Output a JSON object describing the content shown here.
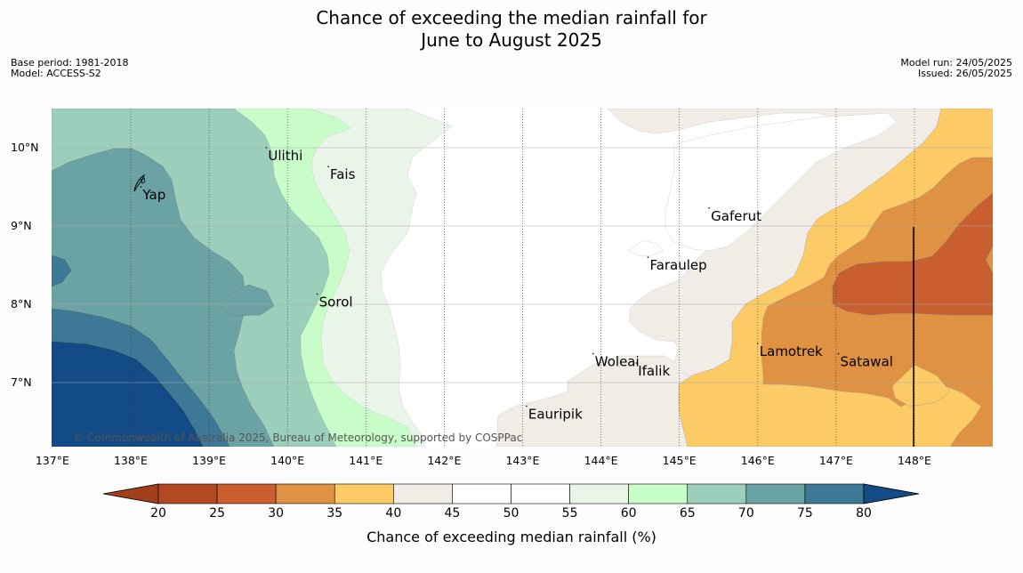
{
  "title_line1": "Chance of exceeding the median rainfall for",
  "title_line2": "June to August 2025",
  "base_period": "Base period: 1981-2018",
  "model": "Model: ACCESS-S2",
  "model_run": "Model run: 24/05/2025",
  "issued": "Issued: 26/05/2025",
  "copyright": "© Commonwealth of Australia 2025, Bureau of Meteorology, supported by COSPPac",
  "lat_labels": [
    "10°N",
    "9°N",
    "8°N",
    "7°N"
  ],
  "lon_labels": [
    "137°E",
    "138°E",
    "139°E",
    "140°E",
    "141°E",
    "142°E",
    "143°E",
    "144°E",
    "145°E",
    "146°E",
    "147°E",
    "148°E"
  ],
  "places": [
    {
      "name": "Ulithi",
      "lon": 139.73,
      "lat": 10.0
    },
    {
      "name": "Fais",
      "lon": 140.52,
      "lat": 9.76
    },
    {
      "name": "Yap",
      "lon": 138.13,
      "lat": 9.5
    },
    {
      "name": "Gaferut",
      "lon": 145.38,
      "lat": 9.23
    },
    {
      "name": "Faraulep",
      "lon": 144.6,
      "lat": 8.6
    },
    {
      "name": "Sorol",
      "lon": 140.38,
      "lat": 8.13
    },
    {
      "name": "Lamotrek",
      "lon": 146.0,
      "lat": 7.5
    },
    {
      "name": "Woleai",
      "lon": 143.9,
      "lat": 7.37
    },
    {
      "name": "Ifalik",
      "lon": 144.45,
      "lat": 7.25
    },
    {
      "name": "Satawal",
      "lon": 147.03,
      "lat": 7.37
    },
    {
      "name": "Eauripik",
      "lon": 143.05,
      "lat": 6.7
    }
  ],
  "colorbar": {
    "title": "Chance of exceeding median rainfall (%)",
    "ticks": [
      "20",
      "25",
      "30",
      "35",
      "40",
      "45",
      "50",
      "55",
      "60",
      "65",
      "70",
      "75",
      "80"
    ],
    "colors": [
      "#b14a24",
      "#c95e2e",
      "#e09243",
      "#fdcb65",
      "#f1ece6",
      "#ffffff",
      "#ffffff",
      "#eaf5e9",
      "#c8fcc8",
      "#9ccfbb",
      "#6ba2a4",
      "#3d7897",
      "#134b86"
    ],
    "under_color": "#a2401e",
    "over_color": "#134b86"
  }
}
